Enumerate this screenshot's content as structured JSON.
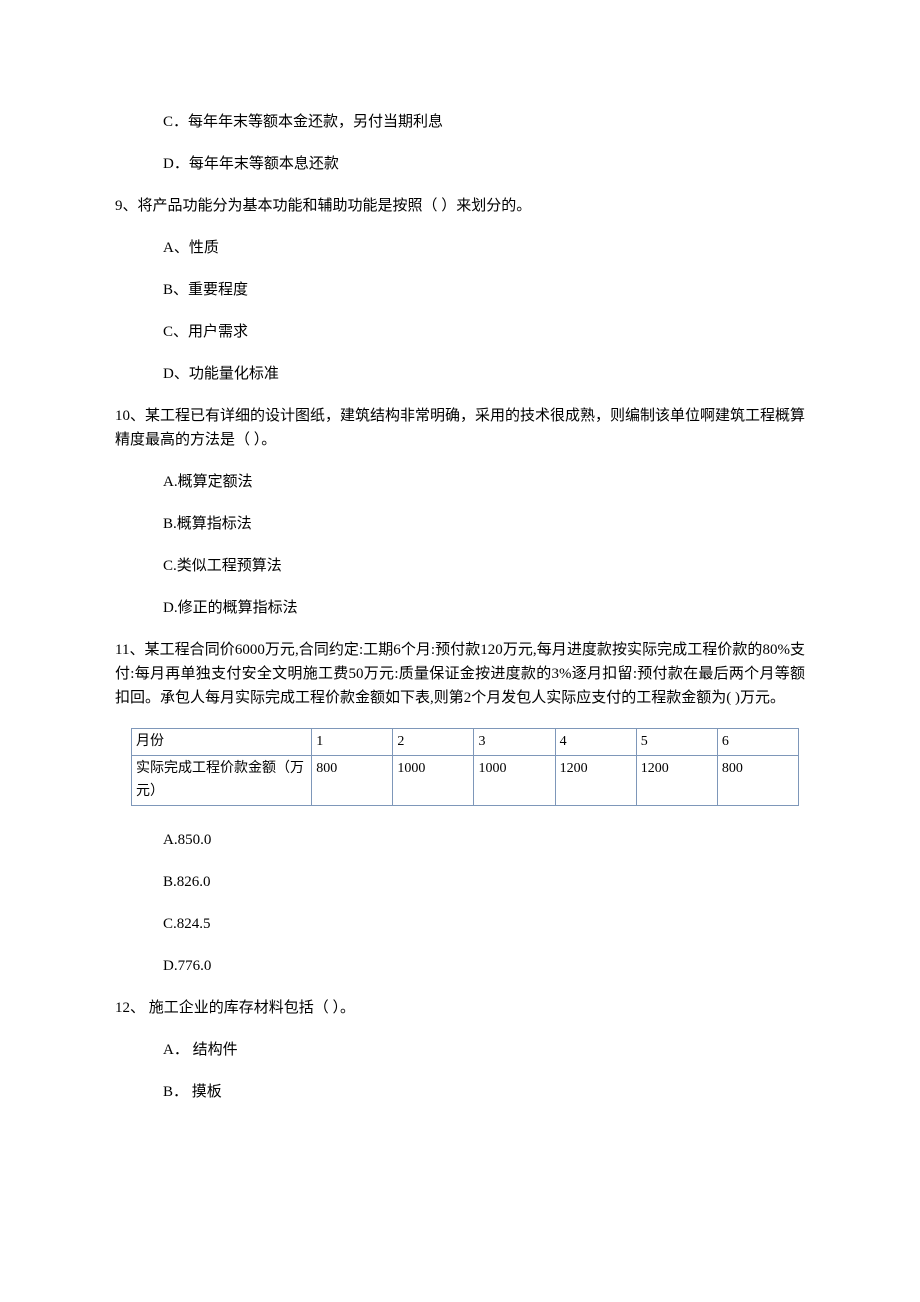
{
  "q8": {
    "opt_c": "C．每年年末等额本金还款，另付当期利息",
    "opt_d": "D．每年年末等额本息还款"
  },
  "q9": {
    "stem": "9、将产品功能分为基本功能和辅助功能是按照（  ）来划分的。",
    "opt_a": "A、性质",
    "opt_b": "B、重要程度",
    "opt_c": "C、用户需求",
    "opt_d": "D、功能量化标准"
  },
  "q10": {
    "stem": "10、某工程已有详细的设计图纸，建筑结构非常明确，采用的技术很成熟，则编制该单位啊建筑工程概算精度最高的方法是（   ）。",
    "opt_a": "A.概算定额法",
    "opt_b": "B.概算指标法",
    "opt_c": "C.类似工程预算法",
    "opt_d": "D.修正的概算指标法"
  },
  "q11": {
    "stem": "11、某工程合同价6000万元,合同约定:工期6个月:预付款120万元,每月进度款按实际完成工程价款的80%支付:每月再单独支付安全文明施工费50万元:质量保证金按进度款的3%逐月扣留:预付款在最后两个月等额扣回。承包人每月实际完成工程价款金额如下表,则第2个月发包人实际应支付的工程款金额为(   )万元。",
    "opt_a": "A.850.0",
    "opt_b": "B.826.0",
    "opt_c": "C.824.5",
    "opt_d": "D.776.0",
    "table": {
      "border_color": "#7e97b9",
      "row1_label": "月份",
      "row2_label": "实际完成工程价款金额（万元）",
      "months": [
        "1",
        "2",
        "3",
        "4",
        "5",
        "6"
      ],
      "values": [
        "800",
        "1000",
        "1000",
        "1200",
        "1200",
        "800"
      ]
    }
  },
  "q12": {
    "stem": "12、 施工企业的库存材料包括（   ）。",
    "opt_a": "A． 结构件",
    "opt_b": "B． 摸板"
  }
}
